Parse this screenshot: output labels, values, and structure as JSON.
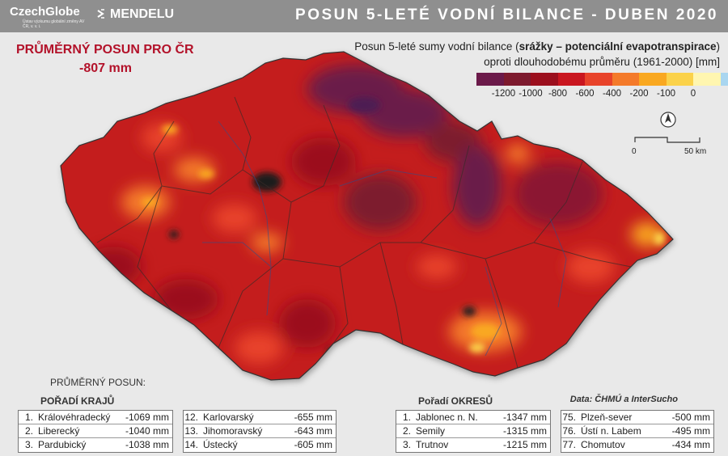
{
  "header": {
    "logo_left": "CzechGlobe",
    "logo_left_sub": "Ústav výzkumu globální změny AV ČR, v. v. i.",
    "logo_right": "MENDELU",
    "title": "POSUN 5-LETÉ VODNÍ BILANCE - DUBEN 2020"
  },
  "summary": {
    "label": "PRŮMĚRNÝ POSUN PRO ČR",
    "value": "-807 mm"
  },
  "legend": {
    "line1_prefix": "Posun 5-leté sumy vodní bilance (",
    "line1_bold": "srážky –  potenciální evapotranspirace",
    "line1_suffix": ")",
    "line2": "oproti dlouhodobému průměru (1961-2000) [mm]",
    "colors": [
      "#6b1a4a",
      "#7d1a2e",
      "#9b0f1d",
      "#c9161f",
      "#e8432a",
      "#f47a2a",
      "#f9a820",
      "#fbd24a",
      "#fff6b0",
      "#a9d6f0"
    ],
    "ticks": [
      "-1200",
      "-1000",
      "-800",
      "-600",
      "-400",
      "-200",
      "-100",
      "0"
    ]
  },
  "scale": {
    "start": "0",
    "end": "50 km",
    "north_icon": "north-arrow-icon"
  },
  "data_source": "Data: ČHMÚ a InterSucho",
  "rankings": {
    "caption": "PRŮMĚRNÝ POSUN:",
    "kraje_title": "POŘADÍ KRAJŮ",
    "kraje_top": [
      {
        "rank": "1.",
        "name": "Královéhradecký",
        "value": "-1069 mm"
      },
      {
        "rank": "2.",
        "name": "Liberecký",
        "value": "-1040 mm"
      },
      {
        "rank": "3.",
        "name": "Pardubický",
        "value": "-1038 mm"
      }
    ],
    "kraje_bottom": [
      {
        "rank": "12.",
        "name": "Karlovarský",
        "value": "-655 mm"
      },
      {
        "rank": "13.",
        "name": "Jihomoravský",
        "value": "-643 mm"
      },
      {
        "rank": "14.",
        "name": "Ústecký",
        "value": "-605 mm"
      }
    ],
    "okresy_title": "Pořadí OKRESŮ",
    "okresy_top": [
      {
        "rank": "1.",
        "name": "Jablonec n. N.",
        "value": "-1347 mm"
      },
      {
        "rank": "2.",
        "name": "Semily",
        "value": "-1315 mm"
      },
      {
        "rank": "3.",
        "name": "Trutnov",
        "value": "-1215 mm"
      }
    ],
    "okresy_bottom": [
      {
        "rank": "75.",
        "name": "Plzeň-sever",
        "value": "-500 mm"
      },
      {
        "rank": "76.",
        "name": "Ústí n. Labem",
        "value": "-495 mm"
      },
      {
        "rank": "77.",
        "name": "Chomutov",
        "value": "-434 mm"
      }
    ]
  }
}
